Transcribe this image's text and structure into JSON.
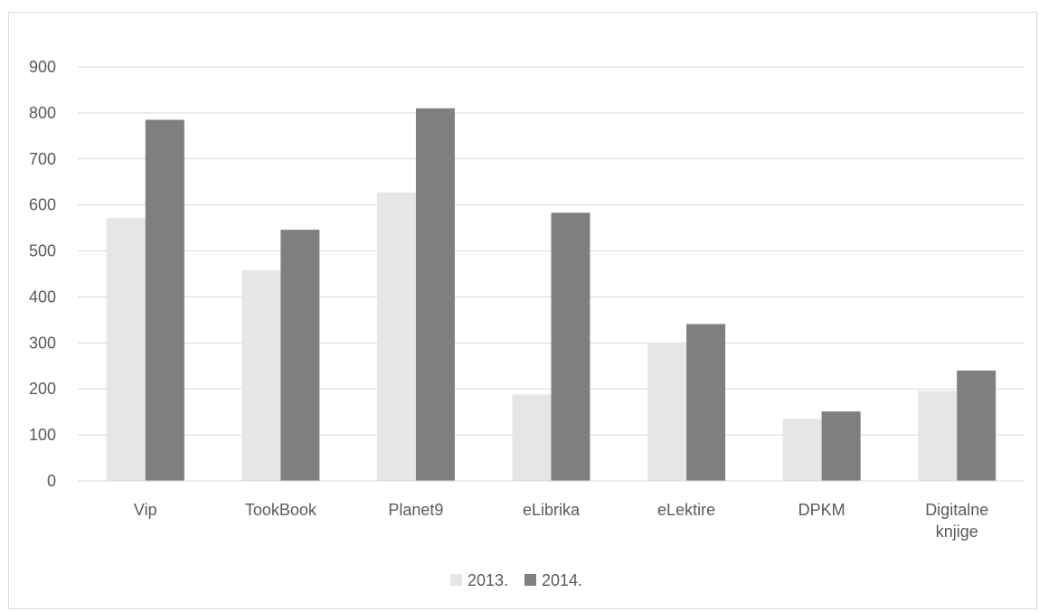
{
  "chart_data": {
    "type": "bar",
    "title": "",
    "xlabel": "",
    "ylabel": "",
    "categories": [
      "Vip",
      "TookBook",
      "Planet9",
      "eLibrika",
      "eLektire",
      "DPKM",
      "Digitalne knjige"
    ],
    "category_lines": [
      [
        "Vip"
      ],
      [
        "TookBook"
      ],
      [
        "Planet9"
      ],
      [
        "eLibrika"
      ],
      [
        "eLektire"
      ],
      [
        "DPKM"
      ],
      [
        "Digitalne",
        "knjige"
      ]
    ],
    "series": [
      {
        "name": "2013.",
        "color": "#e7e6e6",
        "values": [
          572,
          458,
          627,
          188,
          300,
          135,
          196
        ]
      },
      {
        "name": "2014.",
        "color": "#7f7f7f",
        "values": [
          785,
          546,
          810,
          583,
          341,
          151,
          240
        ]
      }
    ],
    "ylim": [
      0,
      900
    ],
    "yticks": [
      0,
      100,
      200,
      300,
      400,
      500,
      600,
      700,
      800,
      900
    ],
    "grid": true,
    "legend_position": "bottom"
  }
}
